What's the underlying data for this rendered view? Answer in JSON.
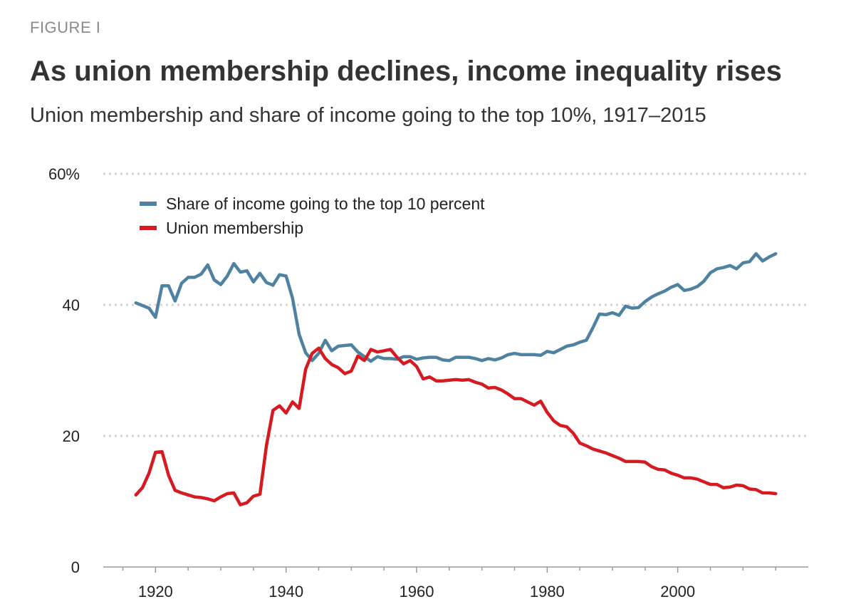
{
  "figure_label": "FIGURE I",
  "title": "As union membership declines, income inequality rises",
  "subtitle": "Union membership and share of income going to the top 10%, 1917–2015",
  "chart_data": {
    "type": "line",
    "x_range": [
      1912,
      2020
    ],
    "ylim": [
      0,
      60
    ],
    "y_ticks": [
      {
        "value": 0,
        "label": "0"
      },
      {
        "value": 20,
        "label": "20"
      },
      {
        "value": 40,
        "label": "40"
      },
      {
        "value": 60,
        "label": "60%"
      }
    ],
    "x_ticks": [
      {
        "value": 1920,
        "label": "1920"
      },
      {
        "value": 1940,
        "label": "1940"
      },
      {
        "value": 1960,
        "label": "1960"
      },
      {
        "value": 1980,
        "label": "1980"
      },
      {
        "value": 2000,
        "label": "2000"
      }
    ],
    "grid": "horizontal-dotted",
    "legend_position": "top-left",
    "series": [
      {
        "name": "Share of income going to the top 10 percent",
        "color": "#4f81a1",
        "x": [
          1917,
          1918,
          1919,
          1920,
          1921,
          1922,
          1923,
          1924,
          1925,
          1926,
          1927,
          1928,
          1929,
          1930,
          1931,
          1932,
          1933,
          1934,
          1935,
          1936,
          1937,
          1938,
          1939,
          1940,
          1941,
          1942,
          1943,
          1944,
          1945,
          1946,
          1947,
          1948,
          1949,
          1950,
          1951,
          1952,
          1953,
          1954,
          1955,
          1956,
          1957,
          1958,
          1959,
          1960,
          1961,
          1962,
          1963,
          1964,
          1965,
          1966,
          1967,
          1968,
          1969,
          1970,
          1971,
          1972,
          1973,
          1974,
          1975,
          1976,
          1977,
          1978,
          1979,
          1980,
          1981,
          1982,
          1983,
          1984,
          1985,
          1986,
          1987,
          1988,
          1989,
          1990,
          1991,
          1992,
          1993,
          1994,
          1995,
          1996,
          1997,
          1998,
          1999,
          2000,
          2001,
          2002,
          2003,
          2004,
          2005,
          2006,
          2007,
          2008,
          2009,
          2010,
          2011,
          2012,
          2013,
          2014,
          2015
        ],
        "values": [
          40.3,
          39.9,
          39.5,
          38.1,
          42.9,
          42.9,
          40.6,
          43.3,
          44.2,
          44.2,
          44.7,
          46.1,
          43.8,
          43.1,
          44.4,
          46.3,
          45.0,
          45.2,
          43.5,
          44.8,
          43.4,
          43.0,
          44.6,
          44.4,
          41.0,
          35.5,
          32.7,
          31.5,
          32.6,
          34.6,
          33.0,
          33.7,
          33.8,
          33.9,
          32.8,
          32.1,
          31.4,
          32.1,
          31.8,
          31.8,
          31.7,
          32.1,
          32.1,
          31.7,
          31.9,
          32.0,
          32.0,
          31.6,
          31.5,
          32.0,
          32.0,
          32.0,
          31.8,
          31.5,
          31.8,
          31.6,
          31.9,
          32.4,
          32.6,
          32.4,
          32.4,
          32.4,
          32.3,
          32.9,
          32.7,
          33.2,
          33.7,
          33.9,
          34.3,
          34.6,
          36.5,
          38.6,
          38.5,
          38.8,
          38.4,
          39.8,
          39.5,
          39.6,
          40.5,
          41.2,
          41.7,
          42.1,
          42.7,
          43.1,
          42.2,
          42.4,
          42.8,
          43.6,
          44.9,
          45.5,
          45.7,
          46.0,
          45.5,
          46.4,
          46.6,
          47.8,
          46.7,
          47.3,
          47.8
        ]
      },
      {
        "name": "Union membership",
        "color": "#d61a21",
        "x": [
          1917,
          1918,
          1919,
          1920,
          1921,
          1922,
          1923,
          1924,
          1925,
          1926,
          1927,
          1928,
          1929,
          1930,
          1931,
          1932,
          1933,
          1934,
          1935,
          1936,
          1937,
          1938,
          1939,
          1940,
          1941,
          1942,
          1943,
          1944,
          1945,
          1946,
          1947,
          1948,
          1949,
          1950,
          1951,
          1952,
          1953,
          1954,
          1955,
          1956,
          1957,
          1958,
          1959,
          1960,
          1961,
          1962,
          1963,
          1964,
          1965,
          1966,
          1967,
          1968,
          1969,
          1970,
          1971,
          1972,
          1973,
          1974,
          1975,
          1976,
          1977,
          1978,
          1979,
          1980,
          1981,
          1982,
          1983,
          1984,
          1985,
          1986,
          1987,
          1988,
          1989,
          1990,
          1991,
          1992,
          1993,
          1994,
          1995,
          1996,
          1997,
          1998,
          1999,
          2000,
          2001,
          2002,
          2003,
          2004,
          2005,
          2006,
          2007,
          2008,
          2009,
          2010,
          2011,
          2012,
          2013,
          2014,
          2015
        ],
        "values": [
          11.0,
          12.1,
          14.3,
          17.5,
          17.6,
          14.0,
          11.7,
          11.3,
          11.0,
          10.7,
          10.6,
          10.4,
          10.1,
          10.7,
          11.2,
          11.3,
          9.5,
          9.8,
          10.8,
          11.1,
          18.6,
          23.9,
          24.6,
          23.5,
          25.2,
          24.2,
          30.2,
          32.6,
          33.4,
          31.8,
          30.9,
          30.4,
          29.5,
          29.9,
          32.2,
          31.5,
          33.2,
          32.8,
          33.0,
          33.2,
          32.0,
          31.0,
          31.5,
          30.6,
          28.7,
          29.0,
          28.4,
          28.4,
          28.5,
          28.6,
          28.5,
          28.6,
          28.2,
          27.9,
          27.3,
          27.4,
          27.0,
          26.4,
          25.7,
          25.7,
          25.2,
          24.7,
          25.3,
          23.6,
          22.3,
          21.6,
          21.4,
          20.4,
          18.9,
          18.5,
          18.0,
          17.7,
          17.4,
          17.0,
          16.6,
          16.1,
          16.1,
          16.1,
          16.0,
          15.3,
          14.9,
          14.8,
          14.3,
          14.0,
          13.6,
          13.6,
          13.4,
          13.0,
          12.6,
          12.6,
          12.1,
          12.2,
          12.5,
          12.4,
          11.9,
          11.8,
          11.3,
          11.3,
          11.2
        ]
      }
    ]
  }
}
